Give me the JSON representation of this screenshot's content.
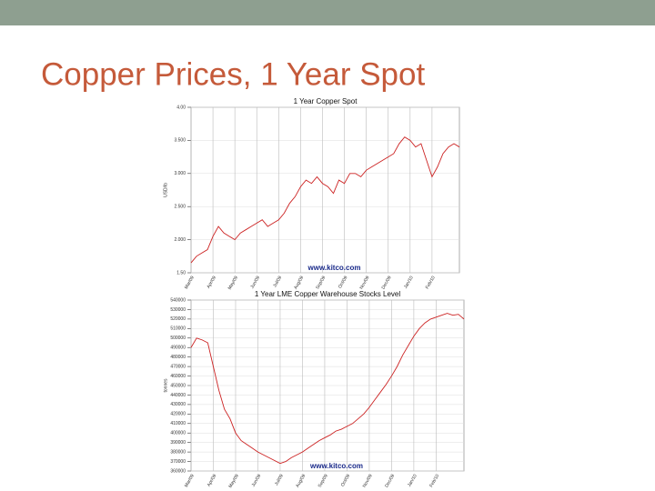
{
  "title": "Copper Prices, 1 Year Spot",
  "chart_data": [
    {
      "type": "line",
      "title": "1 Year Copper Spot",
      "y_label": "USD/lb",
      "annotation": "www.kitco.com",
      "categories": [
        "Mar/09",
        null,
        null,
        null,
        "Apr/09",
        null,
        null,
        null,
        "May/09",
        null,
        null,
        null,
        "Jun/09",
        null,
        null,
        null,
        "Jul/09",
        null,
        null,
        null,
        "Aug/09",
        null,
        null,
        null,
        "Sep/09",
        null,
        null,
        null,
        "Oct/09",
        null,
        null,
        null,
        "Nov/09",
        null,
        null,
        null,
        "Dec/09",
        null,
        null,
        null,
        "Jan/10",
        null,
        null,
        null,
        "Feb/10",
        null,
        null,
        null,
        null,
        null
      ],
      "series": [
        {
          "name": "Copper Spot",
          "color": "#cc2222",
          "values": [
            1.65,
            1.75,
            1.8,
            1.85,
            2.05,
            2.2,
            2.1,
            2.05,
            2.0,
            2.1,
            2.15,
            2.2,
            2.25,
            2.3,
            2.2,
            2.25,
            2.3,
            2.4,
            2.55,
            2.65,
            2.8,
            2.9,
            2.85,
            2.95,
            2.85,
            2.8,
            2.7,
            2.9,
            2.85,
            3.0,
            3.0,
            2.95,
            3.05,
            3.1,
            3.15,
            3.2,
            3.25,
            3.3,
            3.45,
            3.55,
            3.5,
            3.4,
            3.45,
            3.2,
            2.95,
            3.1,
            3.3,
            3.4,
            3.45,
            3.4
          ]
        }
      ],
      "ylim": [
        1.5,
        4.0
      ],
      "yticks": [
        {
          "value": 1.5,
          "label": "1.50"
        },
        {
          "value": 2.0,
          "label": "2.000"
        },
        {
          "value": 2.5,
          "label": "2.500"
        },
        {
          "value": 3.0,
          "label": "3.000"
        },
        {
          "value": 3.5,
          "label": "3.500"
        },
        {
          "value": 4.0,
          "label": "4.00"
        }
      ],
      "grid": true
    },
    {
      "type": "line",
      "title": "1 Year LME Copper Warehouse Stocks Level",
      "y_label": "tonnes",
      "annotation": "www.kitco.com",
      "categories": [
        "Mar/09",
        null,
        null,
        null,
        "Apr/09",
        null,
        null,
        null,
        "May/09",
        null,
        null,
        null,
        "Jun/09",
        null,
        null,
        null,
        "Jul/09",
        null,
        null,
        null,
        "Aug/09",
        null,
        null,
        null,
        "Sep/09",
        null,
        null,
        null,
        "Oct/09",
        null,
        null,
        null,
        "Nov/09",
        null,
        null,
        null,
        "Dec/09",
        null,
        null,
        null,
        "Jan/10",
        null,
        null,
        null,
        "Feb/10",
        null,
        null,
        null,
        null,
        null
      ],
      "series": [
        {
          "name": "LME Stocks",
          "color": "#cc2222",
          "values": [
            490000,
            500000,
            498000,
            495000,
            470000,
            445000,
            425000,
            415000,
            400000,
            392000,
            388000,
            384000,
            380000,
            377000,
            374000,
            371000,
            368000,
            370000,
            374000,
            377000,
            380000,
            384000,
            388000,
            392000,
            395000,
            398000,
            402000,
            404000,
            407000,
            410000,
            415000,
            420000,
            427000,
            435000,
            443000,
            451000,
            460000,
            470000,
            482000,
            492000,
            502000,
            510000,
            516000,
            520000,
            522000,
            524000,
            526000,
            524000,
            525000,
            520000
          ]
        }
      ],
      "ylim": [
        360000,
        540000
      ],
      "yticks": [
        360000,
        370000,
        380000,
        390000,
        400000,
        410000,
        420000,
        430000,
        440000,
        450000,
        460000,
        470000,
        480000,
        490000,
        500000,
        510000,
        520000,
        530000,
        540000
      ],
      "grid": true
    }
  ]
}
